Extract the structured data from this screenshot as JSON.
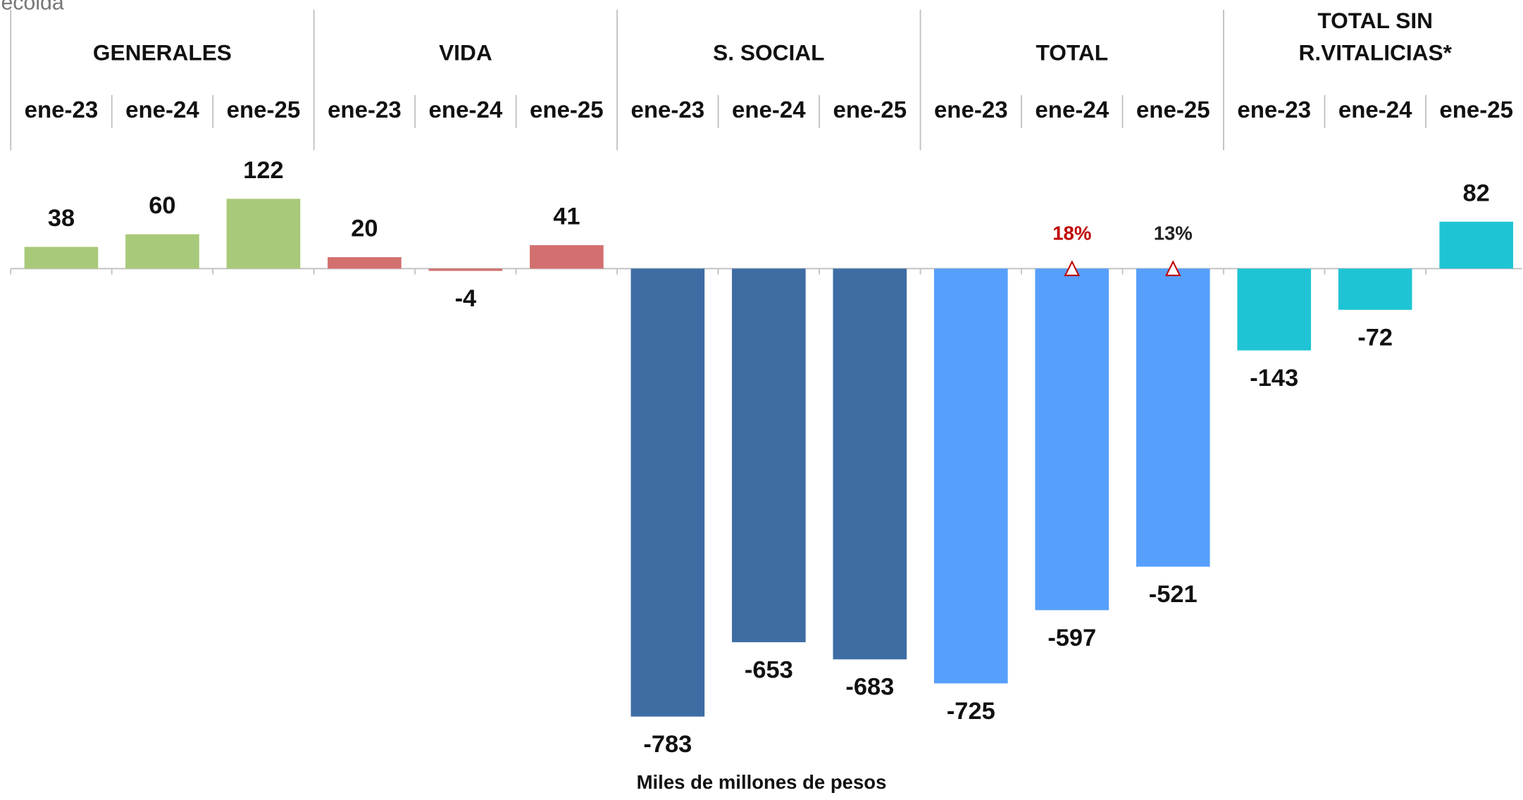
{
  "chart_data": {
    "type": "bar",
    "source": "ecolda",
    "x_label": "Miles de millones de pesos",
    "ylim": [
      -800,
      130
    ],
    "groups": [
      {
        "name": "GENERALES",
        "categories": [
          "ene-23",
          "ene-24",
          "ene-25"
        ],
        "values": [
          38,
          60,
          122
        ],
        "color": "#a9c97a"
      },
      {
        "name": "VIDA",
        "categories": [
          "ene-23",
          "ene-24",
          "ene-25"
        ],
        "values": [
          20,
          -4,
          41
        ],
        "color": "#d2706f"
      },
      {
        "name": "S. SOCIAL",
        "categories": [
          "ene-23",
          "ene-24",
          "ene-25"
        ],
        "values": [
          -783,
          -653,
          -683
        ],
        "color": "#3e6da4"
      },
      {
        "name": "TOTAL",
        "categories": [
          "ene-23",
          "ene-24",
          "ene-25"
        ],
        "values": [
          -725,
          -597,
          -521
        ],
        "color": "#569ffc",
        "change_labels": [
          null,
          "18%",
          "13%"
        ],
        "change_label_colors": [
          null,
          "#c00000",
          "#222222"
        ]
      },
      {
        "name": [
          "TOTAL SIN",
          "R.VITALICIAS*"
        ],
        "categories": [
          "ene-23",
          "ene-24",
          "ene-25"
        ],
        "values": [
          -143,
          -72,
          82
        ],
        "color": "#1fc4d4"
      }
    ]
  }
}
